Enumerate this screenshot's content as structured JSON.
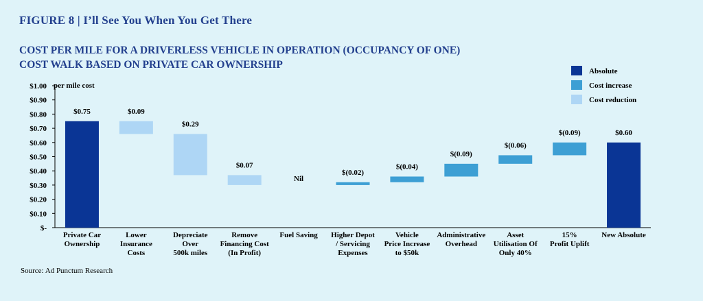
{
  "figure": {
    "label": "FIGURE 8",
    "separator": "|",
    "title": "I’ll See You When You Get There"
  },
  "chart_title": {
    "line1": "COST PER MILE FOR A DRIVERLESS VEHICLE IN OPERATION (OCCUPANCY OF ONE)",
    "line2": "COST WALK BASED ON PRIVATE CAR OWNERSHIP"
  },
  "source": "Source: Ad Punctum Research",
  "colors": {
    "absolute": "#0a3595",
    "increase": "#3d9fd4",
    "reduction": "#aed6f5",
    "title": "#23408e",
    "background": "#dff3f9"
  },
  "chart_data": {
    "type": "bar",
    "subtype": "waterfall",
    "ylabel": "per mile cost",
    "ylim": [
      0,
      1.0
    ],
    "yticks": [
      "$-",
      "$0.10",
      "$0.20",
      "$0.30",
      "$0.40",
      "$0.50",
      "$0.60",
      "$0.70",
      "$0.80",
      "$0.90",
      "$1.00"
    ],
    "legend": {
      "position": "top-right",
      "entries": [
        {
          "name": "Absolute",
          "kind": "absolute"
        },
        {
          "name": "Cost increase",
          "kind": "increase"
        },
        {
          "name": "Cost reduction",
          "kind": "reduction"
        }
      ]
    },
    "bars": [
      {
        "category": [
          "Private Car",
          "Ownership"
        ],
        "kind": "absolute",
        "low": 0,
        "high": 0.75,
        "label": "$0.75"
      },
      {
        "category": [
          "Lower",
          "Insurance",
          "Costs"
        ],
        "kind": "reduction",
        "low": 0.66,
        "high": 0.75,
        "label": "$0.09"
      },
      {
        "category": [
          "Depreciate",
          "Over",
          "500k miles"
        ],
        "kind": "reduction",
        "low": 0.37,
        "high": 0.66,
        "label": "$0.29"
      },
      {
        "category": [
          "Remove",
          "Financing Cost",
          "(In Profit)"
        ],
        "kind": "reduction",
        "low": 0.3,
        "high": 0.37,
        "label": "$0.07"
      },
      {
        "category": [
          "Fuel Saving"
        ],
        "kind": "none",
        "low": 0.3,
        "high": 0.3,
        "label": "Nil"
      },
      {
        "category": [
          "Higher Depot",
          "/ Servicing",
          "Expenses"
        ],
        "kind": "increase",
        "low": 0.3,
        "high": 0.32,
        "label": "$(0.02)"
      },
      {
        "category": [
          "Vehicle",
          "Price Increase",
          "to $50k"
        ],
        "kind": "increase",
        "low": 0.32,
        "high": 0.36,
        "label": "$(0.04)"
      },
      {
        "category": [
          "Administrative",
          "Overhead"
        ],
        "kind": "increase",
        "low": 0.36,
        "high": 0.45,
        "label": "$(0.09)"
      },
      {
        "category": [
          "Asset",
          "Utilisation Of",
          "Only 40%"
        ],
        "kind": "increase",
        "low": 0.45,
        "high": 0.51,
        "label": "$(0.06)"
      },
      {
        "category": [
          "15%",
          "Profit Uplift"
        ],
        "kind": "increase",
        "low": 0.51,
        "high": 0.6,
        "label": "$(0.09)"
      },
      {
        "category": [
          "New Absolute"
        ],
        "kind": "absolute",
        "low": 0,
        "high": 0.6,
        "label": "$0.60"
      }
    ]
  }
}
